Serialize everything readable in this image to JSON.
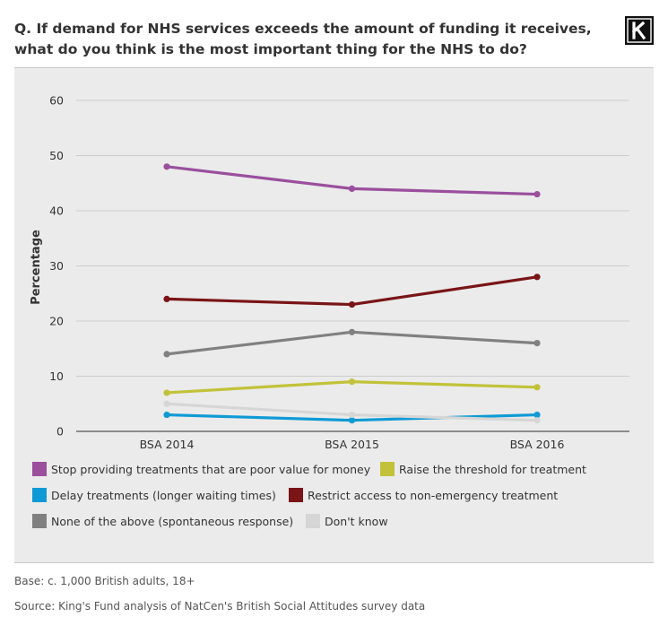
{
  "title": "Q. If demand for NHS services exceeds the amount of funding it receives, what do you think is the most important thing for the NHS to do?",
  "logo": {
    "letter": "K"
  },
  "chart_data": {
    "type": "line",
    "x": [
      "BSA 2014",
      "BSA 2015",
      "BSA 2016"
    ],
    "ylabel": "Percentage",
    "xlabel": "",
    "ylim": [
      0,
      60
    ],
    "yticks": [
      "0",
      "10",
      "20",
      "30",
      "40",
      "50",
      "60"
    ],
    "grid": true,
    "legend_position": "bottom",
    "series": [
      {
        "name": "Stop providing treatments that are poor value for money",
        "color": "#9b4f9d",
        "values": [
          48,
          44,
          43
        ]
      },
      {
        "name": "Raise the threshold for treatment",
        "color": "#c2c23a",
        "values": [
          7,
          9,
          8
        ]
      },
      {
        "name": "Delay treatments (longer waiting times)",
        "color": "#0f9ad6",
        "values": [
          3,
          2,
          3
        ]
      },
      {
        "name": "Restrict access to non-emergency treatment",
        "color": "#7a1416",
        "values": [
          24,
          23,
          28
        ]
      },
      {
        "name": "None of the above (spontaneous response)",
        "color": "#808080",
        "values": [
          14,
          18,
          16
        ]
      },
      {
        "name": "Don't know",
        "color": "#d6d6d6",
        "values": [
          5,
          3,
          2
        ]
      }
    ]
  },
  "footer": {
    "base": "Base: c. 1,000 British adults, 18+",
    "source": "Source: King's Fund analysis of NatCen's British Social Attitudes survey data"
  }
}
